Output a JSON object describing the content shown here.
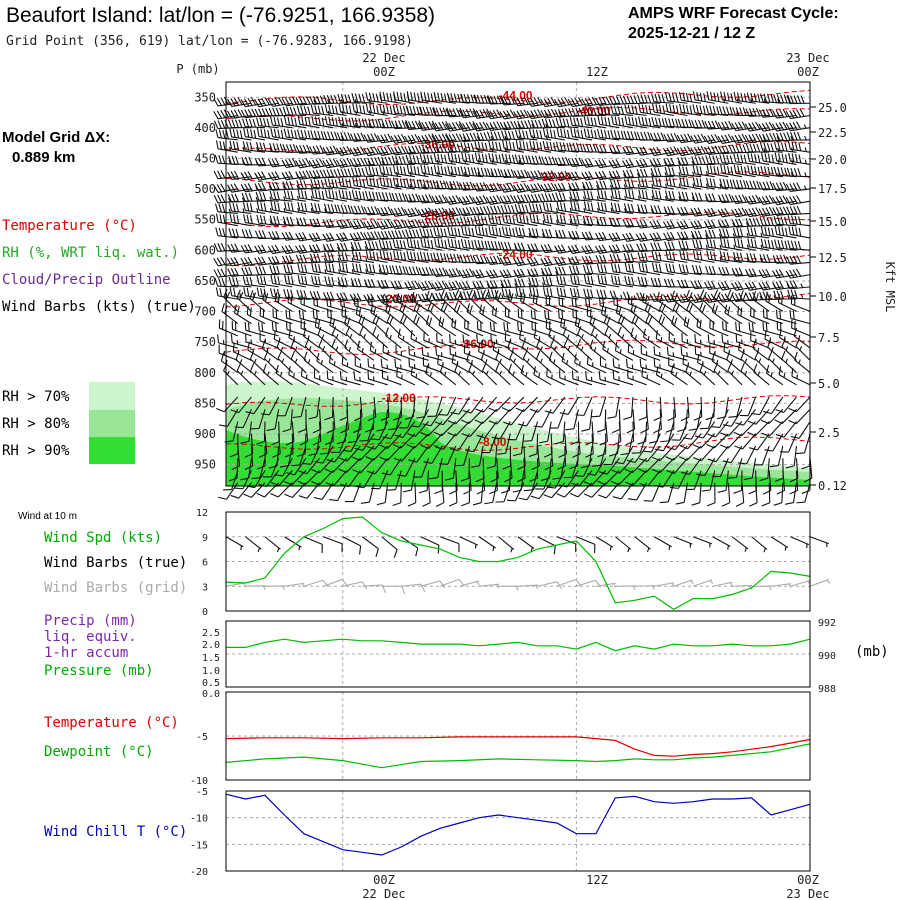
{
  "header": {
    "title": "Beaufort Island:  lat/lon = (-76.9251, 166.9358)",
    "subtitle": "Grid Point (356, 619) lat/lon = (-76.9283, 166.9198)",
    "cycle_label": "AMPS WRF Forecast Cycle:",
    "cycle_value": "2025-12-21 / 12  Z"
  },
  "left_panel": {
    "grid_label": "Model Grid ΔX:",
    "grid_value": "0.889 km",
    "legend": {
      "temperature": "Temperature (°C)",
      "rh": "RH (%, WRT liq. wat.)",
      "cloud": "Cloud/Precip Outline",
      "wind": "Wind Barbs (kts) (true)"
    },
    "rh_levels": [
      {
        "label": "RH > 70%",
        "color": "#ccf5cc"
      },
      {
        "label": "RH > 80%",
        "color": "#99e699"
      },
      {
        "label": "RH > 90%",
        "color": "#33dd33"
      }
    ]
  },
  "time_axis": {
    "top_labels": [
      "22 Dec",
      "00Z",
      "12Z",
      "23 Dec",
      "00Z"
    ],
    "bottom_labels": [
      "00Z",
      "22 Dec",
      "12Z",
      "00Z",
      "23 Dec"
    ],
    "range_hours": [
      -6,
      24
    ],
    "tick_hours": [
      0,
      12,
      24
    ]
  },
  "colors": {
    "temperature": "#dd0000",
    "rh_green": "#00bb00",
    "precip": "#7a2aa8",
    "pressure": "#00bb00",
    "dewpoint": "#00bb00",
    "windchill": "#0000bb",
    "grid_barb": "#aaaaaa"
  },
  "chart_data": [
    {
      "type": "contour",
      "name": "cross-section",
      "ylabel": "P (mb)",
      "y2label": "Kft MSL",
      "p_ticks": [
        350,
        400,
        450,
        500,
        550,
        600,
        650,
        700,
        750,
        800,
        850,
        900,
        950
      ],
      "kft_ticks": [
        "25.0",
        "22.5",
        "20.0",
        "17.5",
        "15.0",
        "12.5",
        "10.0",
        "7.5",
        "5.0",
        "2.5",
        "0.12"
      ],
      "temperature_contours": [
        {
          "label": "-44.00",
          "p": 352,
          "label_hour": 8
        },
        {
          "label": "-40.00",
          "p": 377,
          "label_hour": 12
        },
        {
          "label": "-36.00",
          "p": 432,
          "label_hour": 4
        },
        {
          "label": "-32.00",
          "p": 485,
          "label_hour": 10
        },
        {
          "label": "-28.00",
          "p": 548,
          "label_hour": 4
        },
        {
          "label": "-24.00",
          "p": 612,
          "label_hour": 8
        },
        {
          "label": "-20.00",
          "p": 684,
          "label_hour": 2
        },
        {
          "label": "-16.00",
          "p": 758,
          "label_hour": 6
        },
        {
          "label": "-12.00",
          "p": 846,
          "label_hour": 2
        },
        {
          "label": "-8.00",
          "p": 918,
          "label_hour": 7
        }
      ],
      "wind_summary": "upper levels westerly 25-45 kt; low levels southerly 5-15 kt"
    },
    {
      "type": "line",
      "name": "wind-10m",
      "title": "Wind at 10 m",
      "series_label": "Wind Spd (kts)",
      "barbs_true_label": "Wind Barbs (true)",
      "barbs_grid_label": "Wind Barbs (grid)",
      "yticks": [
        0,
        3,
        6,
        9,
        12
      ],
      "ylim": [
        0,
        12
      ],
      "x": [
        -6,
        -5,
        -4,
        -3,
        -2,
        -1,
        0,
        1,
        2,
        3,
        4,
        5,
        6,
        7,
        8,
        9,
        10,
        11,
        12,
        13,
        14,
        15,
        16,
        17,
        18,
        19,
        20,
        21,
        22,
        23,
        24
      ],
      "values": [
        3.5,
        3.4,
        4.0,
        7.0,
        9.0,
        10.0,
        11.2,
        11.4,
        9.5,
        8.5,
        8.0,
        7.5,
        6.5,
        6.0,
        6.0,
        6.5,
        7.5,
        8.0,
        8.5,
        6.0,
        1.0,
        1.3,
        1.8,
        0.2,
        1.5,
        1.5,
        2.0,
        2.8,
        4.8,
        4.6,
        4.2
      ]
    },
    {
      "type": "line",
      "name": "precip-pressure",
      "precip_label_lines": [
        "Precip (mm)",
        "liq. equiv.",
        "1-hr accum"
      ],
      "pressure_label": "Pressure (mb)",
      "y2unit": "(mb)",
      "precip_ticks": [
        "2.5",
        "2.0",
        "1.5",
        "1.0",
        "0.5",
        "0.0"
      ],
      "pressure_ticks": [
        992,
        990,
        988
      ],
      "ylim": [
        988,
        992
      ],
      "x": [
        -6,
        -5,
        -4,
        -3,
        -2,
        -1,
        0,
        1,
        2,
        3,
        4,
        5,
        6,
        7,
        8,
        9,
        10,
        11,
        12,
        13,
        14,
        15,
        16,
        17,
        18,
        19,
        20,
        21,
        22,
        23,
        24
      ],
      "pressure": [
        990.4,
        990.4,
        990.7,
        990.9,
        990.7,
        990.8,
        990.9,
        990.8,
        990.8,
        990.7,
        990.6,
        990.6,
        990.6,
        990.5,
        990.6,
        990.7,
        990.5,
        990.5,
        990.3,
        990.7,
        990.2,
        990.5,
        990.3,
        990.6,
        990.5,
        990.5,
        990.6,
        990.5,
        990.5,
        990.6,
        990.9
      ],
      "precip": [
        0,
        0,
        0,
        0,
        0,
        0,
        0,
        0,
        0,
        0,
        0,
        0,
        0,
        0,
        0,
        0,
        0,
        0,
        0,
        0,
        0,
        0,
        0,
        0,
        0,
        0,
        0,
        0,
        0,
        0,
        0
      ]
    },
    {
      "type": "line",
      "name": "temperature-dewpoint",
      "temperature_label": "Temperature (°C)",
      "dewpoint_label": "Dewpoint (°C)",
      "yticks": [
        -5,
        -10
      ],
      "ylim": [
        -10,
        0
      ],
      "x": [
        -6,
        -4,
        -2,
        0,
        2,
        4,
        6,
        8,
        10,
        12,
        13,
        14,
        15,
        16,
        17,
        18,
        19,
        20,
        22,
        24
      ],
      "temperature": [
        -5.3,
        -5.2,
        -5.2,
        -5.3,
        -5.2,
        -5.2,
        -5.1,
        -5.1,
        -5.1,
        -5.1,
        -5.3,
        -5.5,
        -6.5,
        -7.2,
        -7.3,
        -7.1,
        -7.0,
        -6.8,
        -6.2,
        -5.4
      ],
      "dewpoint": [
        -8.0,
        -7.6,
        -7.4,
        -7.8,
        -8.6,
        -7.9,
        -7.8,
        -7.6,
        -7.7,
        -7.8,
        -7.9,
        -7.8,
        -7.6,
        -7.7,
        -7.7,
        -7.5,
        -7.4,
        -7.2,
        -6.8,
        -5.9
      ]
    },
    {
      "type": "line",
      "name": "wind-chill",
      "series_label": "Wind Chill T (°C)",
      "yticks": [
        -5,
        -10,
        -15,
        -20
      ],
      "ylim": [
        -20,
        -5
      ],
      "x": [
        -6,
        -5,
        -4,
        -3,
        -2,
        -1,
        0,
        1,
        2,
        3,
        4,
        5,
        6,
        7,
        8,
        9,
        10,
        11,
        12,
        13,
        14,
        15,
        16,
        17,
        18,
        19,
        20,
        21,
        22,
        23,
        24
      ],
      "values": [
        -5.6,
        -6.5,
        -5.8,
        -9.5,
        -13.0,
        -14.5,
        -16.0,
        -16.5,
        -17.0,
        -15.5,
        -13.5,
        -12.0,
        -11.0,
        -10.0,
        -9.5,
        -10.0,
        -10.5,
        -11.0,
        -13.0,
        -13.0,
        -6.3,
        -6.0,
        -7.0,
        -7.3,
        -7.0,
        -6.5,
        -6.5,
        -6.3,
        -9.5,
        -8.5,
        -7.5
      ]
    }
  ]
}
